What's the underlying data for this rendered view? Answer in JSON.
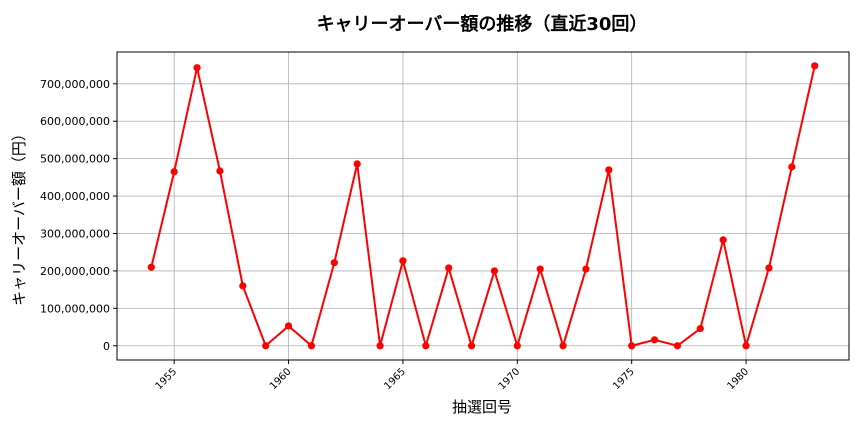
{
  "chart_data": {
    "type": "line",
    "title": "キャリーオーバー額の推移（直近30回）",
    "xlabel": "抽選回号",
    "ylabel": "キャリーオーバー額（円）",
    "xlim": [
      1952.5,
      1984.5
    ],
    "ylim": [
      -38000000,
      785000000
    ],
    "x_ticks": [
      1955,
      1960,
      1965,
      1970,
      1975,
      1980
    ],
    "y_ticks": [
      0,
      100000000,
      200000000,
      300000000,
      400000000,
      500000000,
      600000000,
      700000000
    ],
    "y_tick_labels": [
      "0",
      "100,000,000",
      "200,000,000",
      "300,000,000",
      "400,000,000",
      "500,000,000",
      "600,000,000",
      "700,000,000"
    ],
    "grid": true,
    "series": [
      {
        "color": "#ff0000",
        "x": [
          1954,
          1955,
          1956,
          1957,
          1958,
          1959,
          1960,
          1961,
          1962,
          1963,
          1964,
          1965,
          1966,
          1967,
          1968,
          1969,
          1970,
          1971,
          1972,
          1973,
          1974,
          1975,
          1976,
          1977,
          1978,
          1979,
          1980,
          1981,
          1982,
          1983
        ],
        "values": [
          210000000,
          465000000,
          743000000,
          467000000,
          160000000,
          0,
          53000000,
          0,
          222000000,
          486000000,
          0,
          227000000,
          0,
          208000000,
          0,
          200000000,
          0,
          205000000,
          0,
          205000000,
          470000000,
          0,
          16000000,
          0,
          46000000,
          283000000,
          0,
          208000000,
          478000000,
          748000000
        ]
      }
    ]
  }
}
